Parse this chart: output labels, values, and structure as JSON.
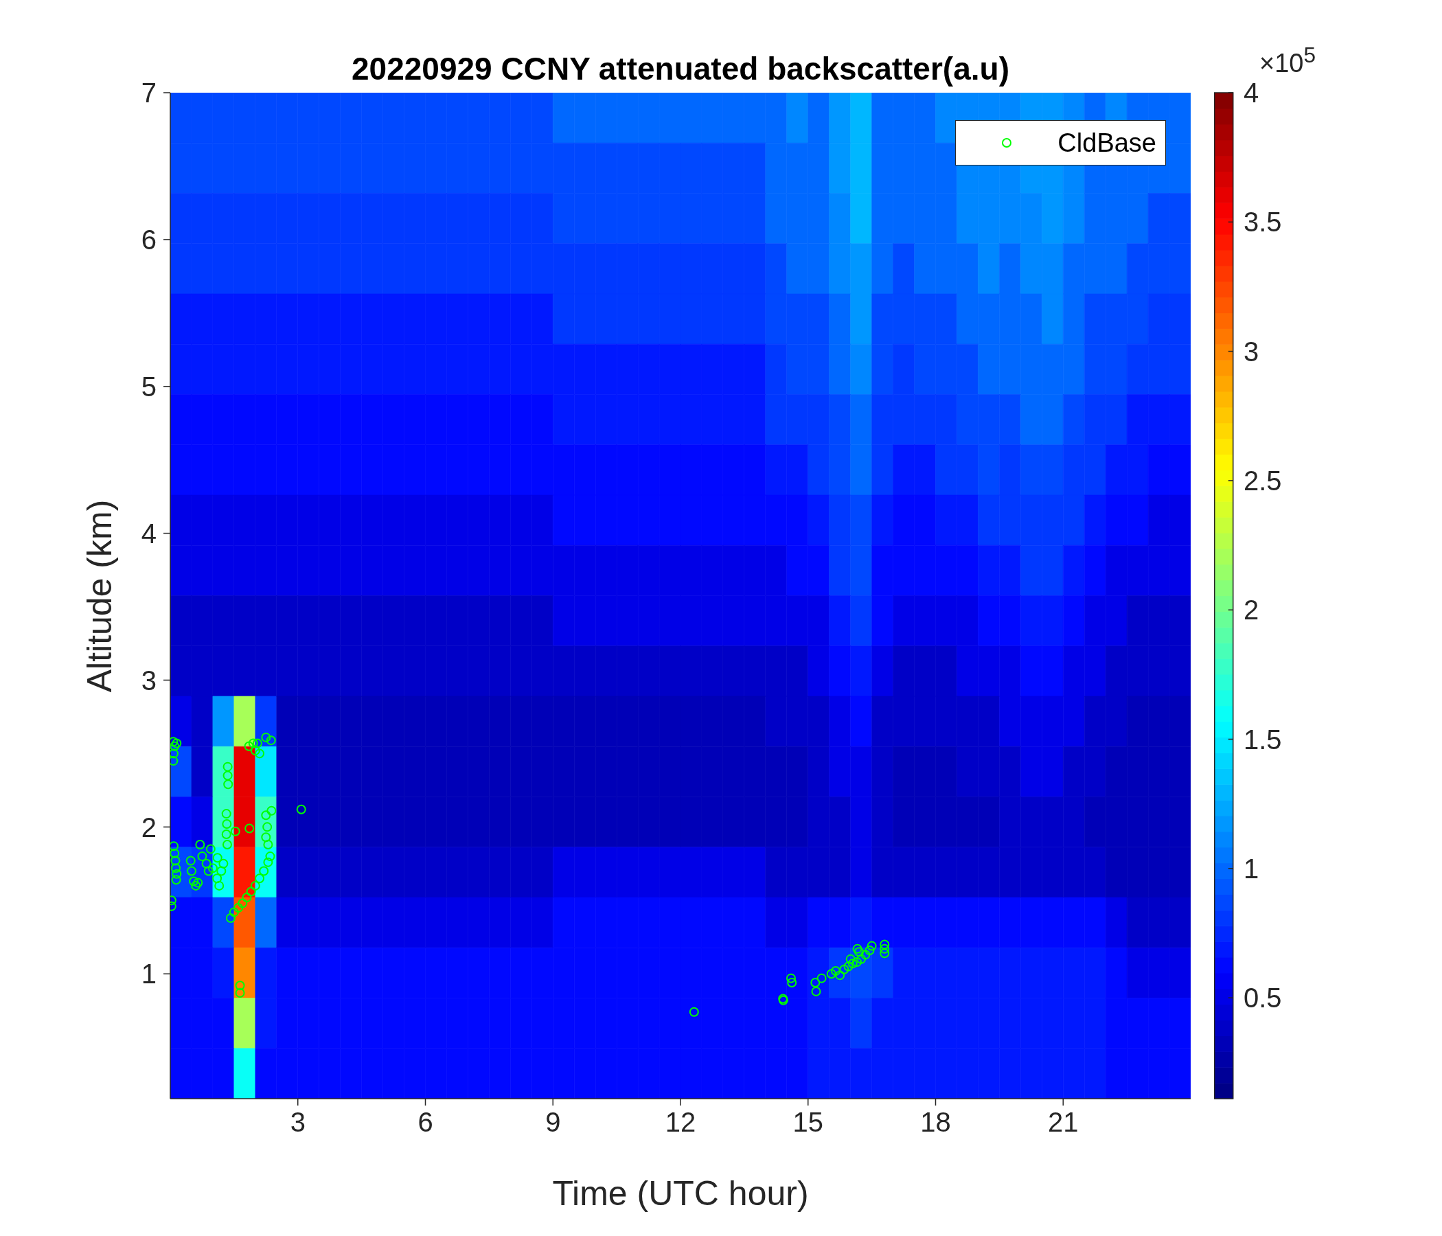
{
  "chart_data": {
    "type": "heatmap",
    "title": "20220929 CCNY attenuated backscatter(a.u)",
    "xlabel": "Time (UTC hour)",
    "ylabel": "Altitude (km)",
    "clabel": "×10$^{5}$",
    "xlim": [
      0,
      24
    ],
    "xticks": [
      3,
      6,
      9,
      12,
      15,
      18,
      21
    ],
    "ylim": [
      0.15,
      7
    ],
    "yticks": [
      1,
      2,
      3,
      4,
      5,
      6,
      7
    ],
    "clim": [
      0.11,
      4
    ],
    "cticks": [
      0.5,
      1,
      1.5,
      2,
      2.5,
      3,
      3.5,
      4
    ],
    "cells": [
      [
        0.9,
        0.9,
        0.9,
        0.9,
        0.9,
        0.9,
        0.9,
        0.9,
        0.9,
        0.9,
        0.9,
        0.9,
        0.9,
        0.9,
        0.9,
        0.9,
        0.9,
        0.9,
        1.0,
        1.0,
        1.0,
        1.0,
        1.0,
        1.0,
        1.0,
        1.0,
        1.0,
        1.0,
        1.0,
        1.1,
        1.0,
        1.2,
        1.3,
        1.0,
        1.0,
        1.0,
        1.1,
        1.1,
        1.1,
        1.1,
        1.2,
        1.2,
        1.1,
        1.0,
        1.1,
        1.0,
        1.0,
        1.0
      ],
      [
        0.9,
        0.9,
        0.9,
        0.9,
        0.9,
        0.9,
        0.9,
        0.9,
        0.9,
        0.9,
        0.9,
        0.9,
        0.9,
        0.9,
        0.9,
        0.9,
        0.9,
        0.9,
        0.9,
        0.9,
        0.9,
        0.9,
        0.9,
        0.9,
        0.9,
        0.9,
        0.9,
        0.9,
        1.0,
        1.0,
        1.0,
        1.2,
        1.3,
        1.0,
        1.0,
        1.0,
        1.0,
        1.1,
        1.1,
        1.1,
        1.2,
        1.2,
        1.1,
        1.0,
        1.0,
        1.0,
        1.0,
        1.0
      ],
      [
        0.8,
        0.8,
        0.8,
        0.8,
        0.8,
        0.8,
        0.8,
        0.8,
        0.8,
        0.8,
        0.8,
        0.8,
        0.8,
        0.8,
        0.8,
        0.8,
        0.8,
        0.8,
        0.9,
        0.9,
        0.9,
        0.9,
        0.9,
        0.9,
        0.9,
        0.9,
        0.9,
        0.9,
        1.0,
        1.0,
        1.0,
        1.1,
        1.3,
        1.0,
        1.0,
        1.0,
        1.0,
        1.1,
        1.1,
        1.1,
        1.1,
        1.2,
        1.1,
        1.0,
        1.0,
        1.0,
        0.9,
        0.9
      ],
      [
        0.8,
        0.8,
        0.8,
        0.8,
        0.8,
        0.8,
        0.8,
        0.8,
        0.8,
        0.8,
        0.8,
        0.8,
        0.8,
        0.8,
        0.8,
        0.8,
        0.8,
        0.8,
        0.8,
        0.8,
        0.8,
        0.8,
        0.8,
        0.8,
        0.8,
        0.8,
        0.8,
        0.8,
        0.9,
        1.0,
        1.0,
        1.1,
        1.2,
        1.0,
        0.9,
        1.0,
        1.0,
        1.0,
        1.1,
        1.0,
        1.1,
        1.1,
        1.0,
        1.0,
        1.0,
        0.9,
        0.9,
        0.9
      ],
      [
        0.7,
        0.7,
        0.7,
        0.7,
        0.7,
        0.7,
        0.7,
        0.7,
        0.7,
        0.7,
        0.7,
        0.7,
        0.7,
        0.7,
        0.7,
        0.7,
        0.7,
        0.7,
        0.8,
        0.8,
        0.8,
        0.8,
        0.8,
        0.8,
        0.8,
        0.8,
        0.8,
        0.8,
        0.9,
        0.9,
        0.9,
        1.0,
        1.2,
        0.9,
        0.9,
        0.9,
        0.9,
        1.0,
        1.0,
        1.0,
        1.0,
        1.1,
        1.0,
        0.9,
        0.9,
        0.9,
        0.8,
        0.8
      ],
      [
        0.7,
        0.7,
        0.7,
        0.7,
        0.7,
        0.7,
        0.7,
        0.7,
        0.7,
        0.7,
        0.7,
        0.7,
        0.7,
        0.7,
        0.7,
        0.7,
        0.7,
        0.7,
        0.7,
        0.7,
        0.7,
        0.7,
        0.7,
        0.7,
        0.7,
        0.7,
        0.7,
        0.7,
        0.8,
        0.9,
        0.9,
        1.0,
        1.1,
        0.9,
        0.8,
        0.9,
        0.9,
        0.9,
        1.0,
        1.0,
        1.0,
        1.0,
        1.0,
        0.9,
        0.9,
        0.8,
        0.8,
        0.8
      ],
      [
        0.6,
        0.6,
        0.6,
        0.6,
        0.6,
        0.6,
        0.6,
        0.6,
        0.6,
        0.6,
        0.6,
        0.6,
        0.6,
        0.6,
        0.6,
        0.6,
        0.6,
        0.6,
        0.7,
        0.7,
        0.7,
        0.7,
        0.7,
        0.7,
        0.7,
        0.7,
        0.7,
        0.7,
        0.8,
        0.8,
        0.8,
        0.9,
        1.0,
        0.8,
        0.8,
        0.8,
        0.8,
        0.9,
        0.9,
        0.9,
        1.0,
        1.0,
        0.9,
        0.8,
        0.8,
        0.7,
        0.7,
        0.7
      ],
      [
        0.6,
        0.6,
        0.6,
        0.6,
        0.6,
        0.6,
        0.6,
        0.6,
        0.6,
        0.6,
        0.6,
        0.6,
        0.6,
        0.6,
        0.6,
        0.6,
        0.6,
        0.6,
        0.6,
        0.6,
        0.6,
        0.6,
        0.6,
        0.6,
        0.6,
        0.6,
        0.6,
        0.6,
        0.7,
        0.7,
        0.8,
        0.9,
        1.0,
        0.8,
        0.7,
        0.7,
        0.8,
        0.8,
        0.9,
        0.8,
        0.9,
        0.9,
        0.8,
        0.8,
        0.7,
        0.7,
        0.6,
        0.6
      ],
      [
        0.5,
        0.5,
        0.5,
        0.5,
        0.5,
        0.5,
        0.5,
        0.5,
        0.5,
        0.5,
        0.5,
        0.5,
        0.5,
        0.5,
        0.5,
        0.5,
        0.5,
        0.5,
        0.6,
        0.6,
        0.6,
        0.6,
        0.6,
        0.6,
        0.6,
        0.6,
        0.6,
        0.6,
        0.6,
        0.6,
        0.7,
        0.8,
        0.9,
        0.7,
        0.6,
        0.6,
        0.7,
        0.7,
        0.8,
        0.8,
        0.8,
        0.8,
        0.8,
        0.7,
        0.6,
        0.6,
        0.5,
        0.5
      ],
      [
        0.5,
        0.5,
        0.5,
        0.5,
        0.5,
        0.5,
        0.5,
        0.5,
        0.5,
        0.5,
        0.5,
        0.5,
        0.5,
        0.5,
        0.5,
        0.5,
        0.5,
        0.5,
        0.5,
        0.5,
        0.5,
        0.5,
        0.5,
        0.5,
        0.5,
        0.5,
        0.5,
        0.5,
        0.5,
        0.6,
        0.6,
        0.8,
        0.9,
        0.6,
        0.6,
        0.6,
        0.6,
        0.6,
        0.7,
        0.7,
        0.8,
        0.8,
        0.7,
        0.6,
        0.5,
        0.5,
        0.5,
        0.5
      ],
      [
        0.4,
        0.4,
        0.4,
        0.4,
        0.4,
        0.4,
        0.4,
        0.4,
        0.4,
        0.4,
        0.4,
        0.4,
        0.4,
        0.4,
        0.4,
        0.4,
        0.4,
        0.4,
        0.5,
        0.5,
        0.5,
        0.5,
        0.5,
        0.5,
        0.5,
        0.5,
        0.5,
        0.5,
        0.5,
        0.5,
        0.5,
        0.7,
        0.8,
        0.6,
        0.5,
        0.5,
        0.5,
        0.5,
        0.6,
        0.6,
        0.7,
        0.7,
        0.6,
        0.5,
        0.5,
        0.4,
        0.4,
        0.4
      ],
      [
        0.4,
        0.4,
        0.4,
        0.4,
        0.4,
        0.4,
        0.4,
        0.4,
        0.4,
        0.4,
        0.4,
        0.4,
        0.4,
        0.4,
        0.4,
        0.4,
        0.4,
        0.4,
        0.4,
        0.4,
        0.4,
        0.4,
        0.4,
        0.4,
        0.4,
        0.4,
        0.4,
        0.4,
        0.4,
        0.4,
        0.5,
        0.6,
        0.7,
        0.5,
        0.4,
        0.4,
        0.4,
        0.5,
        0.5,
        0.5,
        0.6,
        0.6,
        0.5,
        0.5,
        0.4,
        0.4,
        0.4,
        0.4
      ],
      [
        0.5,
        0.4,
        1.2,
        2.2,
        0.8,
        0.3,
        0.3,
        0.3,
        0.3,
        0.3,
        0.3,
        0.3,
        0.3,
        0.3,
        0.3,
        0.3,
        0.3,
        0.3,
        0.3,
        0.3,
        0.3,
        0.3,
        0.3,
        0.3,
        0.3,
        0.3,
        0.3,
        0.3,
        0.4,
        0.4,
        0.4,
        0.5,
        0.6,
        0.4,
        0.4,
        0.4,
        0.4,
        0.4,
        0.4,
        0.5,
        0.5,
        0.5,
        0.5,
        0.4,
        0.4,
        0.3,
        0.3,
        0.3
      ],
      [
        0.9,
        0.4,
        1.8,
        3.6,
        1.5,
        0.3,
        0.3,
        0.3,
        0.3,
        0.3,
        0.3,
        0.3,
        0.3,
        0.3,
        0.3,
        0.3,
        0.3,
        0.3,
        0.3,
        0.3,
        0.3,
        0.3,
        0.3,
        0.3,
        0.3,
        0.3,
        0.3,
        0.3,
        0.3,
        0.3,
        0.4,
        0.5,
        0.5,
        0.4,
        0.3,
        0.3,
        0.3,
        0.4,
        0.4,
        0.4,
        0.5,
        0.5,
        0.4,
        0.4,
        0.3,
        0.3,
        0.3,
        0.3
      ],
      [
        0.6,
        0.5,
        1.8,
        3.6,
        1.8,
        0.3,
        0.3,
        0.3,
        0.3,
        0.3,
        0.3,
        0.3,
        0.3,
        0.3,
        0.3,
        0.3,
        0.3,
        0.3,
        0.3,
        0.3,
        0.3,
        0.3,
        0.3,
        0.3,
        0.3,
        0.3,
        0.3,
        0.3,
        0.3,
        0.3,
        0.4,
        0.4,
        0.5,
        0.4,
        0.3,
        0.3,
        0.3,
        0.3,
        0.3,
        0.4,
        0.4,
        0.4,
        0.4,
        0.3,
        0.3,
        0.3,
        0.3,
        0.3
      ],
      [
        0.9,
        0.8,
        1.6,
        3.4,
        1.6,
        0.4,
        0.4,
        0.4,
        0.4,
        0.4,
        0.4,
        0.4,
        0.4,
        0.4,
        0.4,
        0.4,
        0.4,
        0.4,
        0.5,
        0.5,
        0.5,
        0.5,
        0.5,
        0.5,
        0.5,
        0.5,
        0.5,
        0.5,
        0.4,
        0.4,
        0.4,
        0.4,
        0.5,
        0.4,
        0.4,
        0.4,
        0.4,
        0.4,
        0.4,
        0.4,
        0.4,
        0.4,
        0.4,
        0.4,
        0.3,
        0.3,
        0.3,
        0.3
      ],
      [
        0.6,
        0.6,
        0.9,
        3.2,
        1.0,
        0.5,
        0.5,
        0.5,
        0.5,
        0.5,
        0.5,
        0.5,
        0.5,
        0.5,
        0.5,
        0.5,
        0.5,
        0.5,
        0.6,
        0.6,
        0.6,
        0.6,
        0.6,
        0.6,
        0.6,
        0.6,
        0.6,
        0.6,
        0.5,
        0.5,
        0.6,
        0.6,
        0.7,
        0.6,
        0.6,
        0.6,
        0.6,
        0.6,
        0.6,
        0.6,
        0.6,
        0.6,
        0.6,
        0.6,
        0.5,
        0.4,
        0.4,
        0.4
      ],
      [
        0.6,
        0.6,
        0.7,
        3.0,
        0.7,
        0.6,
        0.6,
        0.6,
        0.6,
        0.6,
        0.6,
        0.6,
        0.6,
        0.6,
        0.6,
        0.6,
        0.6,
        0.6,
        0.6,
        0.6,
        0.6,
        0.6,
        0.6,
        0.6,
        0.6,
        0.6,
        0.6,
        0.6,
        0.6,
        0.6,
        0.7,
        0.8,
        0.9,
        0.8,
        0.7,
        0.7,
        0.7,
        0.7,
        0.7,
        0.7,
        0.7,
        0.7,
        0.7,
        0.7,
        0.6,
        0.5,
        0.5,
        0.5
      ],
      [
        0.6,
        0.6,
        0.6,
        2.2,
        0.7,
        0.6,
        0.6,
        0.6,
        0.6,
        0.6,
        0.6,
        0.6,
        0.6,
        0.6,
        0.6,
        0.6,
        0.6,
        0.6,
        0.6,
        0.6,
        0.6,
        0.6,
        0.6,
        0.6,
        0.6,
        0.6,
        0.6,
        0.6,
        0.6,
        0.6,
        0.7,
        0.7,
        0.8,
        0.7,
        0.7,
        0.7,
        0.7,
        0.7,
        0.7,
        0.7,
        0.7,
        0.7,
        0.7,
        0.7,
        0.6,
        0.6,
        0.6,
        0.6
      ],
      [
        0.6,
        0.6,
        0.6,
        1.6,
        0.6,
        0.6,
        0.6,
        0.6,
        0.6,
        0.6,
        0.6,
        0.6,
        0.6,
        0.6,
        0.6,
        0.6,
        0.6,
        0.6,
        0.6,
        0.6,
        0.6,
        0.6,
        0.6,
        0.6,
        0.6,
        0.6,
        0.6,
        0.6,
        0.6,
        0.6,
        0.7,
        0.7,
        0.7,
        0.7,
        0.7,
        0.7,
        0.7,
        0.7,
        0.7,
        0.7,
        0.7,
        0.7,
        0.7,
        0.7,
        0.6,
        0.6,
        0.6,
        0.6
      ]
    ],
    "series": [
      {
        "name": "CldBase",
        "type": "scatter",
        "color": "#00ff00",
        "x": [
          0.03,
          0.03,
          0.07,
          0.08,
          0.07,
          0.1,
          0.15,
          0.08,
          0.1,
          0.12,
          0.13,
          0.15,
          0.14,
          0.48,
          0.5,
          0.55,
          0.6,
          0.65,
          0.7,
          0.75,
          0.85,
          0.9,
          0.95,
          1.0,
          1.1,
          1.11,
          1.15,
          1.2,
          1.25,
          1.32,
          1.33,
          1.32,
          1.34,
          1.35,
          1.35,
          1.36,
          1.53,
          1.86,
          1.42,
          1.5,
          1.6,
          1.7,
          1.8,
          1.9,
          2.0,
          2.1,
          2.2,
          2.3,
          2.35,
          2.25,
          2.28,
          2.25,
          2.3,
          2.38,
          1.85,
          1.95,
          2.0,
          2.1,
          2.05,
          2.25,
          2.37,
          3.08,
          1.64,
          1.64,
          12.32,
          14.41,
          14.42,
          14.6,
          14.62,
          15.17,
          15.19,
          15.32,
          15.55,
          15.65,
          15.75,
          15.85,
          15.95,
          16.0,
          16.05,
          16.15,
          16.16,
          16.2,
          16.25,
          16.35,
          16.45,
          16.5,
          16.8,
          16.8,
          16.8
        ],
        "values": [
          1.5,
          1.46,
          2.58,
          2.5,
          2.45,
          2.55,
          2.57,
          1.87,
          1.82,
          1.77,
          1.72,
          1.68,
          1.64,
          1.77,
          1.7,
          1.63,
          1.6,
          1.62,
          1.88,
          1.8,
          1.75,
          1.7,
          1.85,
          1.72,
          1.65,
          1.79,
          1.6,
          1.7,
          1.75,
          2.09,
          2.02,
          1.95,
          1.88,
          2.41,
          2.35,
          2.29,
          1.97,
          1.99,
          1.38,
          1.42,
          1.45,
          1.48,
          1.52,
          1.56,
          1.6,
          1.65,
          1.7,
          1.76,
          1.8,
          2.08,
          2.0,
          1.93,
          1.88,
          2.11,
          2.55,
          2.57,
          2.52,
          2.5,
          2.57,
          2.61,
          2.59,
          2.12,
          0.92,
          0.87,
          0.74,
          0.83,
          0.82,
          0.97,
          0.94,
          0.94,
          0.88,
          0.97,
          1.0,
          1.02,
          0.99,
          1.03,
          1.05,
          1.1,
          1.07,
          1.08,
          1.17,
          1.15,
          1.1,
          1.13,
          1.16,
          1.19,
          1.2,
          1.17,
          1.14
        ]
      }
    ],
    "marker": "circle",
    "legend": "top right"
  }
}
